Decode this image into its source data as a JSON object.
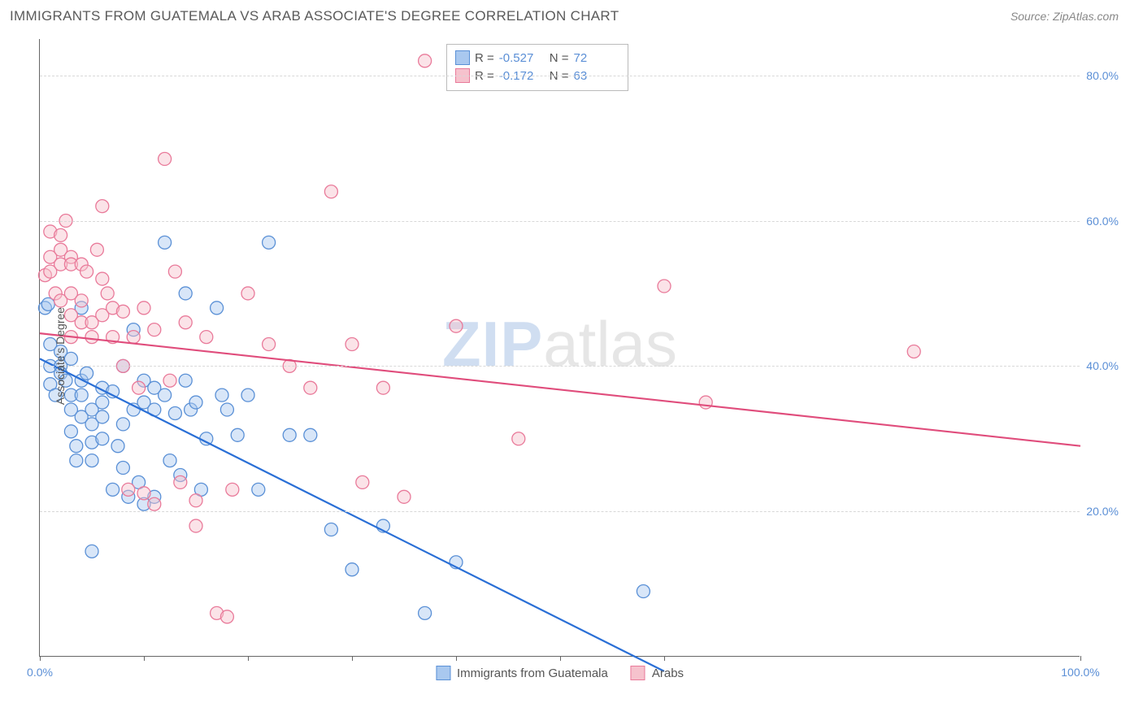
{
  "header": {
    "title": "IMMIGRANTS FROM GUATEMALA VS ARAB ASSOCIATE'S DEGREE CORRELATION CHART",
    "source_label": "Source: ",
    "source_name": "ZipAtlas.com"
  },
  "chart": {
    "type": "scatter",
    "xlim": [
      0,
      100
    ],
    "ylim": [
      0,
      85
    ],
    "x_ticks": [
      0,
      10,
      20,
      30,
      40,
      50,
      60,
      100
    ],
    "x_tick_labels": {
      "0": "0.0%",
      "100": "100.0%"
    },
    "y_ticks": [
      20,
      40,
      60,
      80
    ],
    "y_tick_labels": {
      "20": "20.0%",
      "40": "40.0%",
      "60": "60.0%",
      "80": "80.0%"
    },
    "ylabel": "Associate's Degree",
    "background_color": "#ffffff",
    "grid_color": "#d8d8d8",
    "axis_color": "#666666",
    "tick_label_color": "#5b8fd6",
    "marker_radius": 8,
    "marker_opacity": 0.45,
    "series": [
      {
        "name": "Immigrants from Guatemala",
        "color_fill": "#a9c8ef",
        "color_stroke": "#5a90d6",
        "R": "-0.527",
        "N": "72",
        "trend": {
          "x0": 0,
          "y0": 41,
          "x1": 60,
          "y1": -2,
          "color": "#2a6fd6",
          "width": 2.2
        },
        "points": [
          [
            0.5,
            48
          ],
          [
            0.8,
            48.5
          ],
          [
            1,
            43
          ],
          [
            1,
            40
          ],
          [
            1,
            37.5
          ],
          [
            1.5,
            36
          ],
          [
            2,
            40
          ],
          [
            2,
            39
          ],
          [
            2,
            42
          ],
          [
            2.5,
            38
          ],
          [
            3,
            41
          ],
          [
            3,
            36
          ],
          [
            3,
            34
          ],
          [
            3,
            31
          ],
          [
            3.5,
            29
          ],
          [
            3.5,
            27
          ],
          [
            4,
            33
          ],
          [
            4,
            36
          ],
          [
            4,
            38
          ],
          [
            4,
            48
          ],
          [
            4.5,
            39
          ],
          [
            5,
            34
          ],
          [
            5,
            32
          ],
          [
            5,
            29.5
          ],
          [
            5,
            27
          ],
          [
            5,
            14.5
          ],
          [
            6,
            37
          ],
          [
            6,
            35
          ],
          [
            6,
            33
          ],
          [
            6,
            30
          ],
          [
            7,
            36.5
          ],
          [
            7,
            23
          ],
          [
            7.5,
            29
          ],
          [
            8,
            40
          ],
          [
            8,
            32
          ],
          [
            8,
            26
          ],
          [
            8.5,
            22
          ],
          [
            9,
            34
          ],
          [
            9,
            45
          ],
          [
            9.5,
            24
          ],
          [
            10,
            38
          ],
          [
            10,
            35
          ],
          [
            10,
            21
          ],
          [
            11,
            37
          ],
          [
            11,
            34
          ],
          [
            11,
            22
          ],
          [
            12,
            57
          ],
          [
            12,
            36
          ],
          [
            12.5,
            27
          ],
          [
            13,
            33.5
          ],
          [
            13.5,
            25
          ],
          [
            14,
            50
          ],
          [
            14,
            38
          ],
          [
            14.5,
            34
          ],
          [
            15,
            35
          ],
          [
            15.5,
            23
          ],
          [
            16,
            30
          ],
          [
            17,
            48
          ],
          [
            17.5,
            36
          ],
          [
            18,
            34
          ],
          [
            19,
            30.5
          ],
          [
            20,
            36
          ],
          [
            21,
            23
          ],
          [
            22,
            57
          ],
          [
            24,
            30.5
          ],
          [
            26,
            30.5
          ],
          [
            28,
            17.5
          ],
          [
            30,
            12
          ],
          [
            33,
            18
          ],
          [
            37,
            6
          ],
          [
            40,
            13
          ],
          [
            58,
            9
          ]
        ]
      },
      {
        "name": "Arabs",
        "color_fill": "#f6c2cd",
        "color_stroke": "#e97a9a",
        "R": "-0.172",
        "N": "63",
        "trend": {
          "x0": 0,
          "y0": 44.5,
          "x1": 100,
          "y1": 29,
          "color": "#e04d7c",
          "width": 2.2
        },
        "points": [
          [
            0.5,
            52.5
          ],
          [
            1,
            58.5
          ],
          [
            1,
            55
          ],
          [
            1,
            53
          ],
          [
            1.5,
            50
          ],
          [
            2,
            56
          ],
          [
            2,
            58
          ],
          [
            2,
            54
          ],
          [
            2,
            49
          ],
          [
            2.5,
            60
          ],
          [
            3,
            55
          ],
          [
            3,
            54
          ],
          [
            3,
            50
          ],
          [
            3,
            47
          ],
          [
            3,
            44
          ],
          [
            4,
            54
          ],
          [
            4,
            49
          ],
          [
            4,
            46
          ],
          [
            4.5,
            53
          ],
          [
            5,
            46
          ],
          [
            5,
            44
          ],
          [
            5.5,
            56
          ],
          [
            6,
            52
          ],
          [
            6,
            47
          ],
          [
            6,
            62
          ],
          [
            6.5,
            50
          ],
          [
            7,
            48
          ],
          [
            7,
            44
          ],
          [
            8,
            47.5
          ],
          [
            8,
            40
          ],
          [
            8.5,
            23
          ],
          [
            9,
            44
          ],
          [
            9.5,
            37
          ],
          [
            10,
            48
          ],
          [
            10,
            22.5
          ],
          [
            11,
            45
          ],
          [
            11,
            21
          ],
          [
            12,
            68.5
          ],
          [
            12.5,
            38
          ],
          [
            13,
            53
          ],
          [
            13.5,
            24
          ],
          [
            14,
            46
          ],
          [
            15,
            21.5
          ],
          [
            15,
            18
          ],
          [
            16,
            44
          ],
          [
            17,
            6
          ],
          [
            18,
            5.5
          ],
          [
            18.5,
            23
          ],
          [
            20,
            50
          ],
          [
            22,
            43
          ],
          [
            24,
            40
          ],
          [
            26,
            37
          ],
          [
            28,
            64
          ],
          [
            30,
            43
          ],
          [
            31,
            24
          ],
          [
            33,
            37
          ],
          [
            35,
            22
          ],
          [
            37,
            82
          ],
          [
            40,
            45.5
          ],
          [
            46,
            30
          ],
          [
            60,
            51
          ],
          [
            64,
            35
          ],
          [
            84,
            42
          ]
        ]
      }
    ],
    "legend_bottom": [
      {
        "swatch_fill": "#a9c8ef",
        "swatch_stroke": "#5a90d6",
        "label": "Immigrants from Guatemala"
      },
      {
        "swatch_fill": "#f6c2cd",
        "swatch_stroke": "#e97a9a",
        "label": "Arabs"
      }
    ],
    "watermark": {
      "part1": "ZIP",
      "part2": "atlas"
    }
  }
}
